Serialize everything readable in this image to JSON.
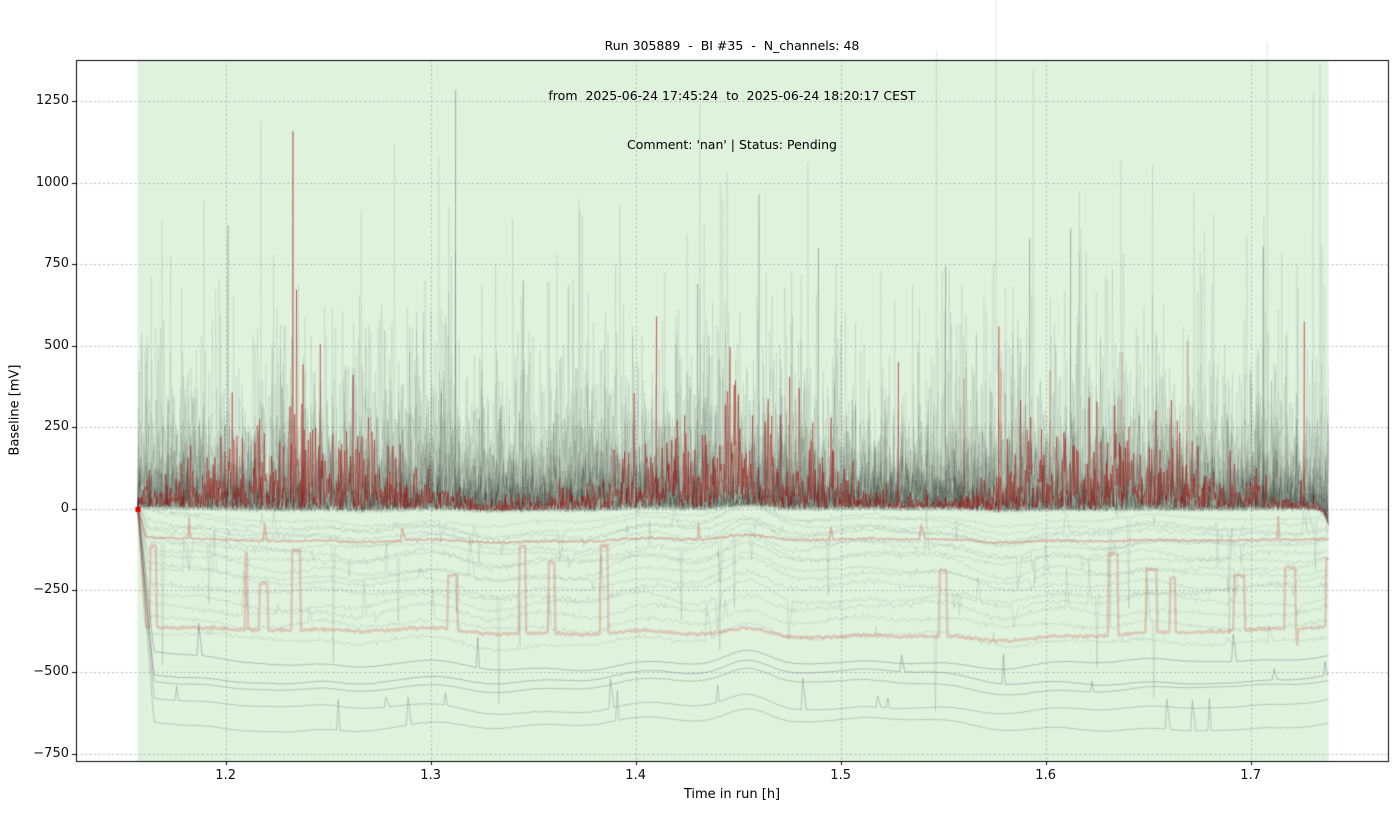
{
  "chart_data": {
    "type": "line",
    "title": "Run 305889  -  BI #35  -  N_channels: 48",
    "subtitle": "from  2025-06-24 17:45:24  to  2025-06-24 18:20:17 CEST",
    "comment": "Comment: 'nan' | Status: Pending",
    "xlabel": "Time in run [h]",
    "ylabel": "Baseline [mV]",
    "xlim": [
      1.127,
      1.767
    ],
    "ylim": [
      -773,
      1377
    ],
    "x_ticks": [
      {
        "v": 1.2,
        "label": "1.2"
      },
      {
        "v": 1.3,
        "label": "1.3"
      },
      {
        "v": 1.4,
        "label": "1.4"
      },
      {
        "v": 1.5,
        "label": "1.5"
      },
      {
        "v": 1.6,
        "label": "1.6"
      },
      {
        "v": 1.7,
        "label": "1.7"
      }
    ],
    "y_ticks": [
      {
        "v": -750,
        "label": "−750"
      },
      {
        "v": -500,
        "label": "−500"
      },
      {
        "v": -250,
        "label": "−250"
      },
      {
        "v": 0,
        "label": "0"
      },
      {
        "v": 250,
        "label": "250"
      },
      {
        "v": 500,
        "label": "500"
      },
      {
        "v": 750,
        "label": "750"
      },
      {
        "v": 1000,
        "label": "1000"
      },
      {
        "v": 1250,
        "label": "1250"
      }
    ],
    "grid": true,
    "grid_style": "dotted",
    "n_channels": 48,
    "run_span": {
      "x_start": 1.157,
      "x_end": 1.738,
      "color": "#def2de",
      "meaning": "run time window"
    },
    "start_marker": {
      "x": 1.157,
      "y": 0,
      "color": "#dd0000"
    },
    "band_features": [
      {
        "x": 1.205,
        "dy": -14
      },
      {
        "x": 1.262,
        "dy": -12
      },
      {
        "x": 1.455,
        "dy": 24
      },
      {
        "x": 1.5,
        "dy": -10
      },
      {
        "x": 1.68,
        "dy": 10
      }
    ],
    "notable_spikes_black": [
      {
        "x": 1.201,
        "v": 870
      },
      {
        "x": 1.312,
        "v": 1285
      },
      {
        "x": 1.46,
        "v": 965
      },
      {
        "x": 1.489,
        "v": 800
      },
      {
        "x": 1.592,
        "v": 830
      },
      {
        "x": 1.612,
        "v": 860
      },
      {
        "x": 1.706,
        "v": 805
      },
      {
        "x": 1.345,
        "v": 700
      },
      {
        "x": 1.551,
        "v": 745
      },
      {
        "x": 1.43,
        "v": 690
      }
    ],
    "notable_spikes_red": [
      {
        "x": 1.246,
        "v": 505,
        "shade": "dark"
      },
      {
        "x": 1.41,
        "v": 590,
        "shade": "dark"
      },
      {
        "x": 1.577,
        "v": 560,
        "shade": "dark"
      },
      {
        "x": 1.726,
        "v": 575,
        "shade": "dark"
      },
      {
        "x": 1.528,
        "v": 450,
        "shade": "dark"
      },
      {
        "x": 1.578,
        "v": 430,
        "shade": "pale"
      },
      {
        "x": 1.637,
        "v": 480,
        "shade": "pale"
      },
      {
        "x": 1.602,
        "v": 425,
        "shade": "pale"
      },
      {
        "x": 1.669,
        "v": 515,
        "shade": "pale"
      },
      {
        "x": 1.56,
        "v": 400,
        "shade": "pale"
      }
    ],
    "colors": {
      "trace_black": "#000000",
      "trace_red": "#aa0000",
      "trace_pale_red": "#cc2211",
      "trace_gray": "#777777",
      "span_green": "#def2de",
      "grid": "#aaaaaa",
      "spine": "#000000"
    },
    "traces": [
      {
        "kind": "spiky",
        "baseline": 0,
        "scale": 150,
        "big": 620,
        "color": "#000000",
        "alpha": 0.085,
        "lw": 0.7,
        "seed": 101
      },
      {
        "kind": "spiky",
        "baseline": -4,
        "scale": 85,
        "big": 580,
        "color": "#000000",
        "alpha": 0.085,
        "lw": 0.7,
        "seed": 102
      },
      {
        "kind": "spiky",
        "baseline": -8,
        "scale": 60,
        "big": 500,
        "color": "#000000",
        "alpha": 0.085,
        "lw": 0.7,
        "seed": 103
      },
      {
        "kind": "spiky",
        "baseline": 0,
        "scale": 110,
        "big": 600,
        "color": "#000000",
        "alpha": 0.085,
        "lw": 0.7,
        "seed": 104
      },
      {
        "kind": "spiky",
        "baseline": -6,
        "scale": 45,
        "big": 480,
        "color": "#000000",
        "alpha": 0.085,
        "lw": 0.7,
        "seed": 105
      },
      {
        "kind": "spiky",
        "baseline": -2,
        "scale": 130,
        "big": 640,
        "color": "#000000",
        "alpha": 0.085,
        "lw": 0.7,
        "seed": 106
      },
      {
        "kind": "spiky",
        "baseline": -10,
        "scale": 70,
        "big": 520,
        "color": "#000000",
        "alpha": 0.085,
        "lw": 0.7,
        "seed": 107
      },
      {
        "kind": "spiky",
        "baseline": 0,
        "scale": 95,
        "big": 560,
        "color": "#000000",
        "alpha": 0.085,
        "lw": 0.7,
        "seed": 108
      },
      {
        "kind": "spiky",
        "baseline": -5,
        "scale": 170,
        "big": 650,
        "color": "#000000",
        "alpha": 0.085,
        "lw": 0.7,
        "seed": 109
      },
      {
        "kind": "spiky",
        "baseline": -3,
        "scale": 55,
        "big": 500,
        "color": "#000000",
        "alpha": 0.085,
        "lw": 0.7,
        "seed": 110
      },
      {
        "kind": "spiky",
        "baseline": 0,
        "scale": 120,
        "big": 600,
        "color": "#000000",
        "alpha": 0.085,
        "lw": 0.7,
        "seed": 111
      },
      {
        "kind": "spiky",
        "baseline": -7,
        "scale": 80,
        "big": 540,
        "color": "#000000",
        "alpha": 0.085,
        "lw": 0.7,
        "seed": 112
      },
      {
        "kind": "spiky",
        "baseline": -2,
        "scale": 100,
        "big": 580,
        "color": "#000000",
        "alpha": 0.085,
        "lw": 0.7,
        "seed": 113
      },
      {
        "kind": "spiky",
        "baseline": -9,
        "scale": 140,
        "big": 620,
        "color": "#000000",
        "alpha": 0.085,
        "lw": 0.7,
        "seed": 114
      },
      {
        "kind": "spiky",
        "baseline": 0,
        "scale": 65,
        "big": 500,
        "color": "#000000",
        "alpha": 0.085,
        "lw": 0.7,
        "seed": 115
      },
      {
        "kind": "spiky",
        "baseline": -4,
        "scale": 90,
        "big": 560,
        "color": "#000000",
        "alpha": 0.085,
        "lw": 0.7,
        "seed": 116
      },
      {
        "kind": "spiky",
        "baseline": -6,
        "scale": 160,
        "big": 640,
        "color": "#000000",
        "alpha": 0.085,
        "lw": 0.7,
        "seed": 117
      },
      {
        "kind": "spiky",
        "baseline": 0,
        "scale": 75,
        "big": 520,
        "color": "#000000",
        "alpha": 0.085,
        "lw": 0.7,
        "seed": 118
      },
      {
        "kind": "spiky",
        "baseline": -8,
        "scale": 50,
        "big": 480,
        "color": "#000000",
        "alpha": 0.085,
        "lw": 0.7,
        "seed": 119
      },
      {
        "kind": "spiky",
        "baseline": -3,
        "scale": 115,
        "big": 600,
        "color": "#000000",
        "alpha": 0.085,
        "lw": 0.7,
        "seed": 120
      },
      {
        "kind": "spiky",
        "baseline": -5,
        "scale": 135,
        "big": 620,
        "color": "#000000",
        "alpha": 0.085,
        "lw": 0.7,
        "seed": 121
      },
      {
        "kind": "spiky",
        "baseline": 0,
        "scale": 105,
        "big": 580,
        "color": "#000000",
        "alpha": 0.085,
        "lw": 0.7,
        "seed": 122
      },
      {
        "kind": "spiky",
        "baseline": -7,
        "scale": 88,
        "big": 540,
        "color": "#000000",
        "alpha": 0.085,
        "lw": 0.7,
        "seed": 123
      },
      {
        "kind": "spiky",
        "baseline": -2,
        "scale": 125,
        "big": 600,
        "color": "#000000",
        "alpha": 0.085,
        "lw": 0.7,
        "seed": 124
      },
      {
        "kind": "wander",
        "baseline": -30,
        "ws": 1.3,
        "noise": 8,
        "slow": 14,
        "spikeAmp": 200,
        "color": "#000000",
        "alpha": 0.14,
        "lw": 0.65,
        "seed": 201
      },
      {
        "kind": "wander",
        "baseline": -45,
        "ws": 1.6,
        "noise": 10,
        "slow": 18,
        "spikeAmp": 240,
        "color": "#000000",
        "alpha": 0.14,
        "lw": 0.65,
        "seed": 202
      },
      {
        "kind": "wander",
        "baseline": -60,
        "ws": 1.9,
        "noise": 9,
        "slow": 22,
        "spikeAmp": 180,
        "color": "#000000",
        "alpha": 0.14,
        "lw": 0.65,
        "seed": 203
      },
      {
        "kind": "wander",
        "baseline": -75,
        "ws": 1.4,
        "noise": 12,
        "slow": 16,
        "spikeAmp": 260,
        "color": "#000000",
        "alpha": 0.14,
        "lw": 0.65,
        "seed": 204
      },
      {
        "kind": "wander",
        "baseline": -90,
        "ws": 2.2,
        "noise": 11,
        "slow": 26,
        "spikeAmp": 220,
        "color": "#000000",
        "alpha": 0.14,
        "lw": 0.65,
        "seed": 205
      },
      {
        "kind": "wander",
        "baseline": -110,
        "ws": 1.7,
        "noise": 9,
        "slow": 20,
        "spikeAmp": 300,
        "color": "#000000",
        "alpha": 0.14,
        "lw": 0.65,
        "seed": 206
      },
      {
        "kind": "wander",
        "baseline": -130,
        "ws": 2.0,
        "noise": 13,
        "slow": 24,
        "spikeAmp": 200,
        "color": "#000000",
        "alpha": 0.14,
        "lw": 0.65,
        "seed": 207
      },
      {
        "kind": "wander",
        "baseline": -150,
        "ws": 1.5,
        "noise": 10,
        "slow": 18,
        "spikeAmp": 280,
        "color": "#000000",
        "alpha": 0.14,
        "lw": 0.65,
        "seed": 208
      },
      {
        "kind": "wander",
        "baseline": -170,
        "ws": 2.4,
        "noise": 12,
        "slow": 28,
        "spikeAmp": 240,
        "color": "#000000",
        "alpha": 0.14,
        "lw": 0.65,
        "seed": 209
      },
      {
        "kind": "wander",
        "baseline": -195,
        "ws": 1.8,
        "noise": 9,
        "slow": 22,
        "spikeAmp": 320,
        "color": "#000000",
        "alpha": 0.14,
        "lw": 0.65,
        "seed": 210
      },
      {
        "kind": "wander",
        "baseline": -220,
        "ws": 2.1,
        "noise": 11,
        "slow": 26,
        "spikeAmp": 260,
        "color": "#000000",
        "alpha": 0.14,
        "lw": 0.65,
        "seed": 211
      },
      {
        "kind": "wander",
        "baseline": -250,
        "ws": 1.6,
        "noise": 14,
        "slow": 20,
        "spikeAmp": 220,
        "color": "#000000",
        "alpha": 0.14,
        "lw": 0.65,
        "seed": 212
      },
      {
        "kind": "wander",
        "baseline": -280,
        "ws": 2.3,
        "noise": 10,
        "slow": 30,
        "spikeAmp": 300,
        "color": "#000000",
        "alpha": 0.14,
        "lw": 0.65,
        "seed": 213
      },
      {
        "kind": "wander",
        "baseline": -310,
        "ws": 1.9,
        "noise": 12,
        "slow": 24,
        "spikeAmp": 260,
        "color": "#000000",
        "alpha": 0.14,
        "lw": 0.65,
        "seed": 214
      },
      {
        "kind": "wander",
        "baseline": -350,
        "ws": 1.7,
        "noise": 11,
        "slow": 22,
        "spikeAmp": 240,
        "color": "#000000",
        "alpha": 0.14,
        "lw": 0.65,
        "seed": 215
      },
      {
        "kind": "wander",
        "baseline": -400,
        "ws": 1.5,
        "noise": 10,
        "slow": 18,
        "spikeAmp": 200,
        "color": "#000000",
        "alpha": 0.14,
        "lw": 0.65,
        "seed": 216
      },
      {
        "kind": "smooth",
        "baseline": -470,
        "slow": 10,
        "color": "#777777",
        "alpha": 0.5,
        "lw": 0.9,
        "seed": 301
      },
      {
        "kind": "smooth",
        "baseline": -515,
        "slow": 12,
        "color": "#777777",
        "alpha": 0.5,
        "lw": 0.9,
        "seed": 302
      },
      {
        "kind": "smooth",
        "baseline": -540,
        "slow": 8,
        "color": "#777777",
        "alpha": 0.45,
        "lw": 0.9,
        "seed": 303
      },
      {
        "kind": "smooth",
        "baseline": -605,
        "slow": 9,
        "color": "#777777",
        "alpha": 0.42,
        "lw": 0.9,
        "seed": 304
      },
      {
        "kind": "smooth",
        "baseline": -660,
        "slow": 11,
        "color": "#777777",
        "alpha": 0.4,
        "lw": 0.9,
        "seed": 305
      },
      {
        "kind": "spiky",
        "baseline": 0,
        "scale": 85,
        "big": 600,
        "color": "#aa0000",
        "alpha": 0.5,
        "lw": 0.8,
        "seed": 401,
        "n": 2000
      },
      {
        "kind": "burst",
        "baseline": -380,
        "pulse_top": -110,
        "color": "#cc2211",
        "alpha": 0.2,
        "lw": 2.4,
        "seed": 402
      },
      {
        "kind": "flat",
        "baseline": -95,
        "color": "#cc4433",
        "alpha": 0.3,
        "lw": 1.8,
        "seed": 403
      }
    ]
  }
}
